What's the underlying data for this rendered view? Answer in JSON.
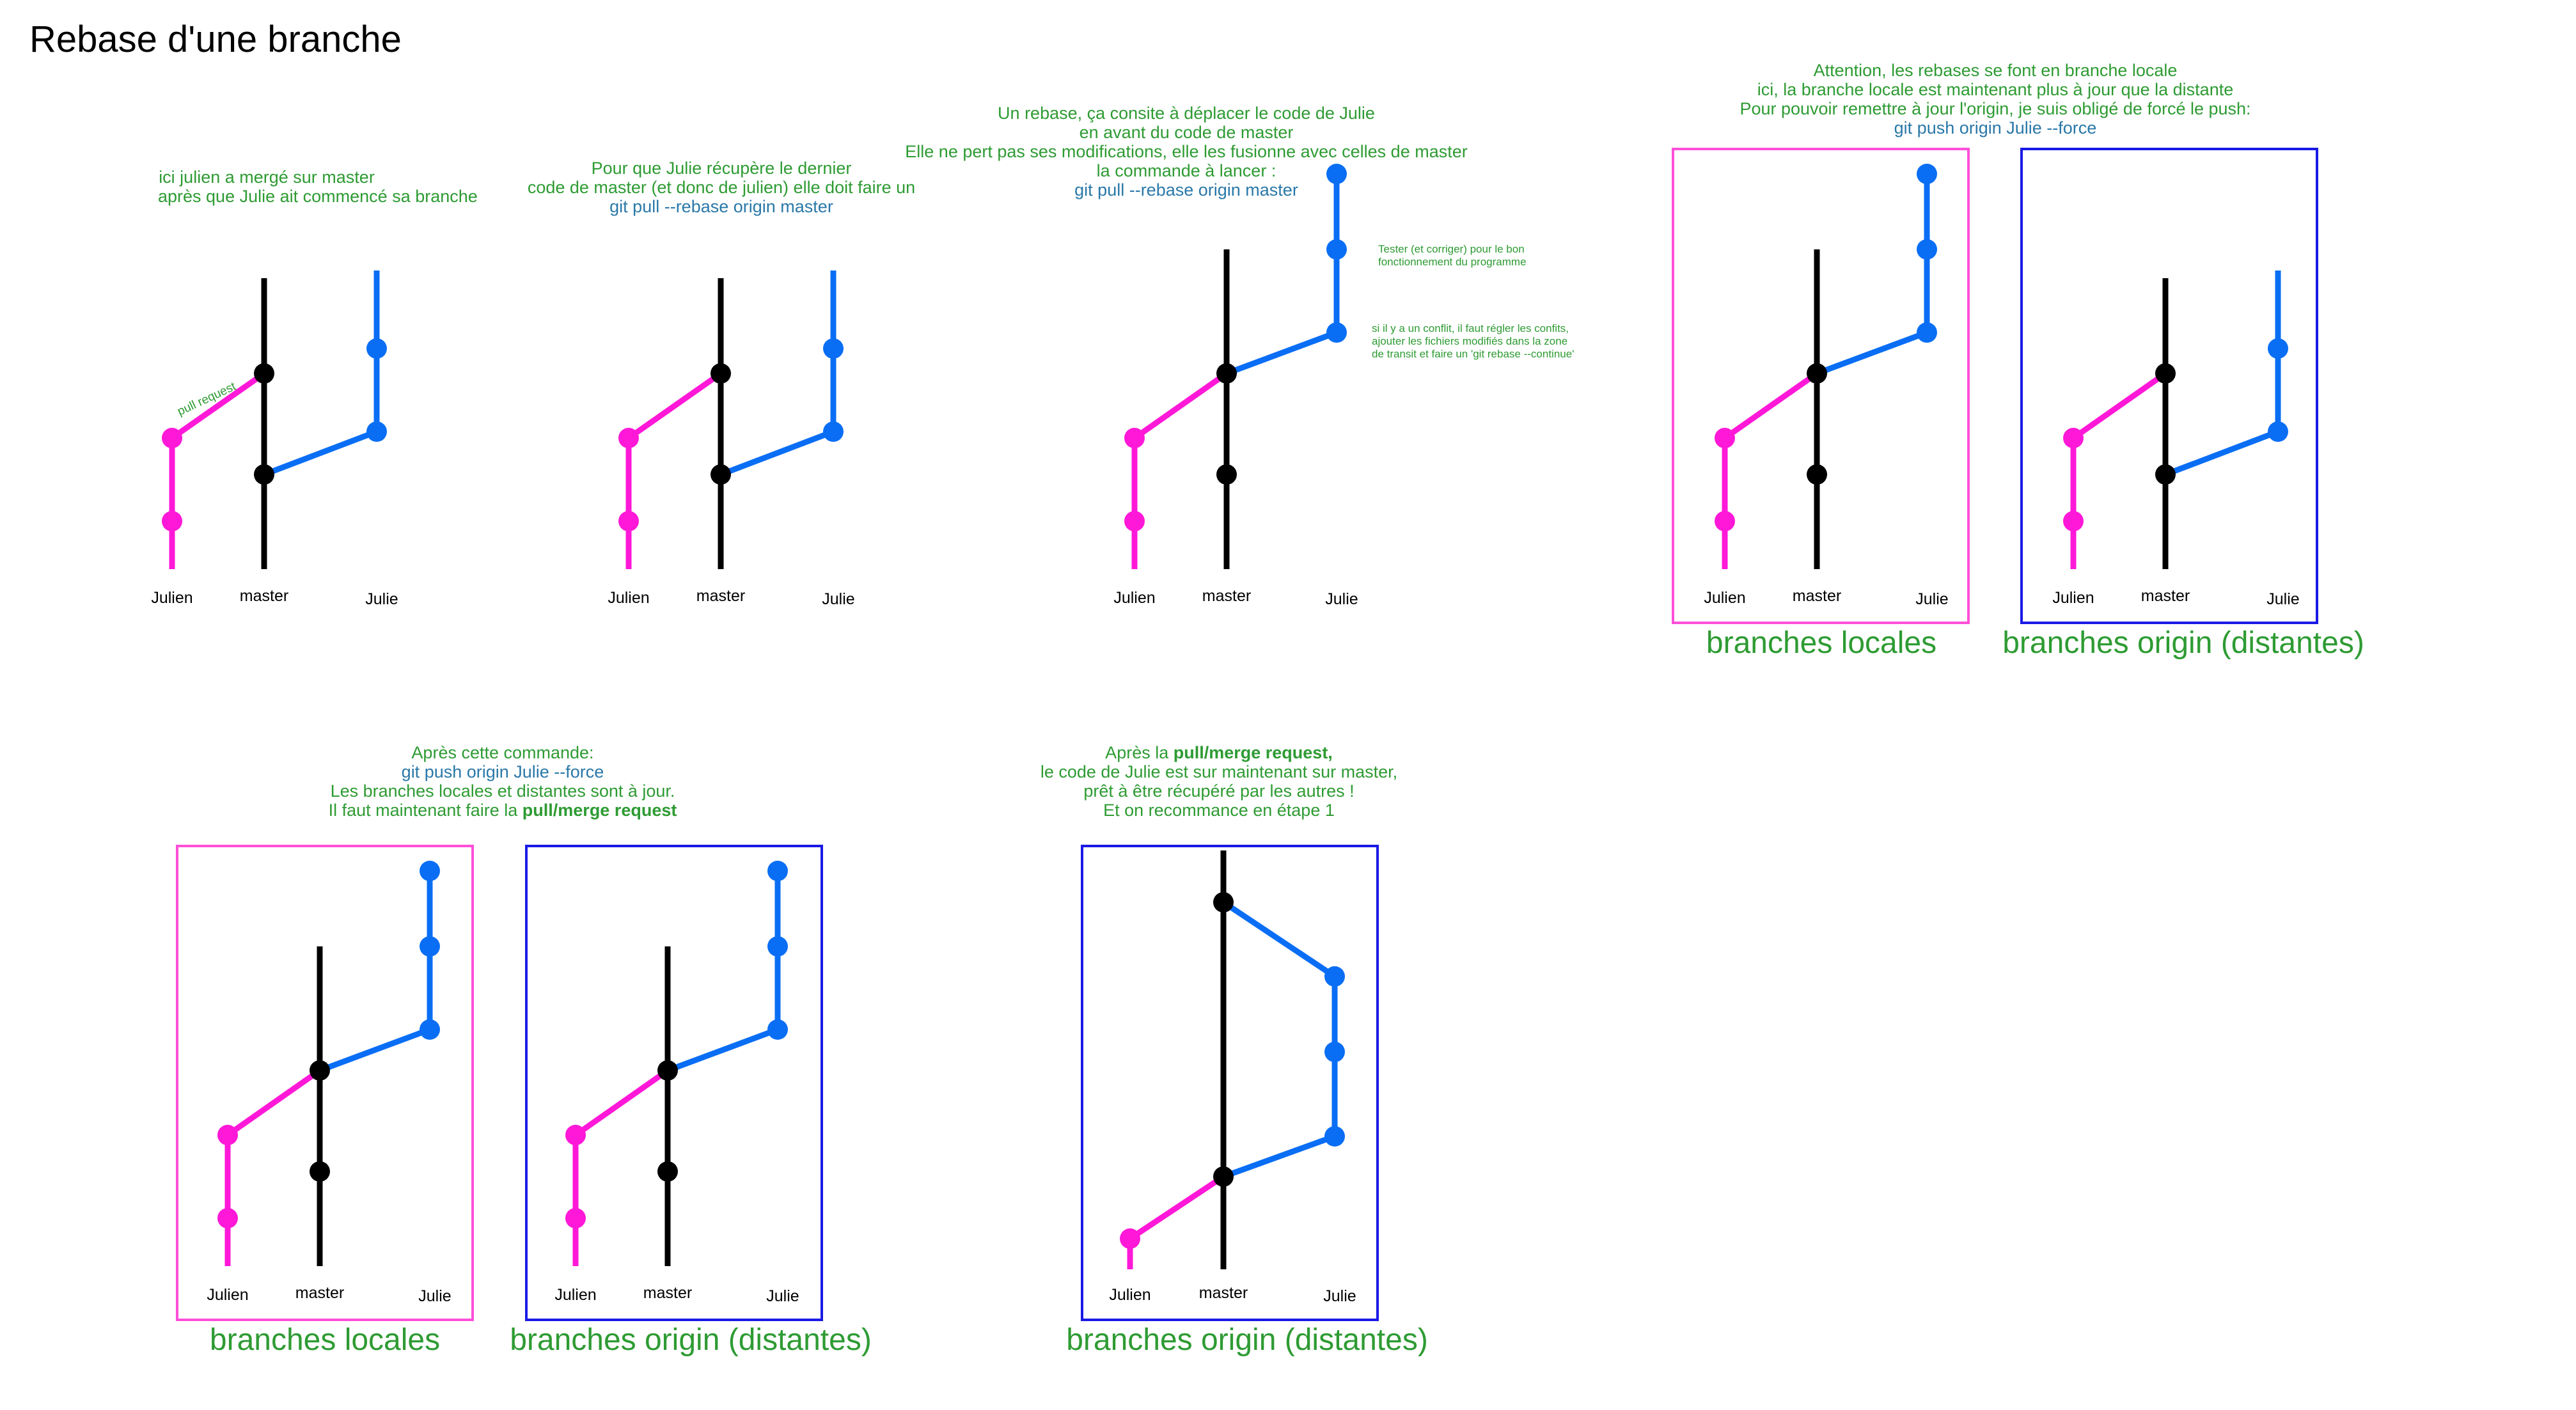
{
  "title": "Rebase d'une branche",
  "colors": {
    "julien": "#ff18d8",
    "master": "#000000",
    "julie": "#0a6ef5",
    "note_green": "#2e9b33",
    "command_blue": "#2a78a8",
    "box_local": "#ff4fd8",
    "box_origin": "#1a1ae6"
  },
  "branch_labels": {
    "julien": "Julien",
    "master": "master",
    "julie": "Julie"
  },
  "steps": {
    "s1": {
      "lines": [
        "ici julien a mergé sur master",
        "après que Julie ait commencé sa branche"
      ],
      "pull_request_label": "pull request"
    },
    "s2": {
      "lines": [
        "Pour que Julie récupère le dernier",
        "code de master (et donc de julien) elle doit faire un"
      ],
      "command": "git pull --rebase origin master"
    },
    "s3": {
      "lines": [
        "Un rebase, ça consite à déplacer le code de Julie",
        "en avant du code de master",
        "Elle ne pert pas ses modifications, elle les fusionne avec celles de master",
        "la commande à lancer :"
      ],
      "command": "git pull --rebase origin master",
      "side_note_1": [
        "Tester (et corriger) pour le bon",
        "fonctionnement du programme"
      ],
      "side_note_2": [
        "si il y a un conflit, il faut régler les confits,",
        "ajouter les fichiers modifiés dans la zone",
        "de transit et faire un 'git rebase --continue'"
      ]
    },
    "s4": {
      "lines": [
        "Attention, les rebases se font en branche locale",
        "ici, la branche locale est maintenant plus à jour que la distante",
        "Pour pouvoir remettre à jour l'origin, je suis obligé de forcé le push:"
      ],
      "command": "git push origin Julie --force"
    },
    "s5": {
      "line1": "Après cette commande:",
      "command": "git push origin Julie --force",
      "line3": "Les branches locales et distantes sont à jour.",
      "line4_prefix": "Il faut maintenant faire la ",
      "line4_bold": "pull/merge request"
    },
    "s6": {
      "line1_prefix": "Après la ",
      "line1_bold": "pull/merge request,",
      "lines": [
        "le code de Julie est sur maintenant sur master,",
        "prêt à être récupéré par les autres !",
        "Et on recommance en étape 1"
      ]
    }
  },
  "captions": {
    "local": "branches locales",
    "origin": "branches origin (distantes)"
  }
}
